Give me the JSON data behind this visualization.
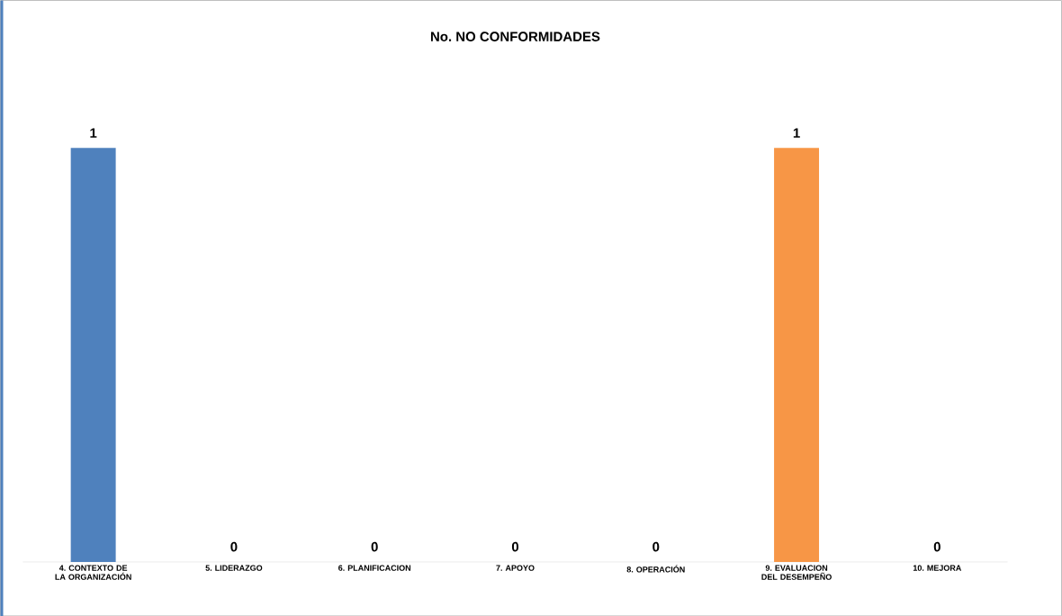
{
  "chart_data": {
    "type": "bar",
    "title": "No. NO CONFORMIDADES",
    "categories": [
      "4. CONTEXTO DE LA ORGANIZACIÓN",
      "5. LIDERAZGO",
      "6. PLANIFICACION",
      "7. APOYO",
      "8. OPERACIÓN",
      "9. EVALUACION DEL DESEMPEÑO",
      "10. MEJORA"
    ],
    "values": [
      1,
      0,
      0,
      0,
      0,
      1,
      0
    ],
    "colors": [
      "#4f81bd",
      "#4f81bd",
      "#4f81bd",
      "#4f81bd",
      "#4f81bd",
      "#f79646",
      "#4f81bd"
    ],
    "data_labels": true,
    "tick_labels": "x"
  }
}
